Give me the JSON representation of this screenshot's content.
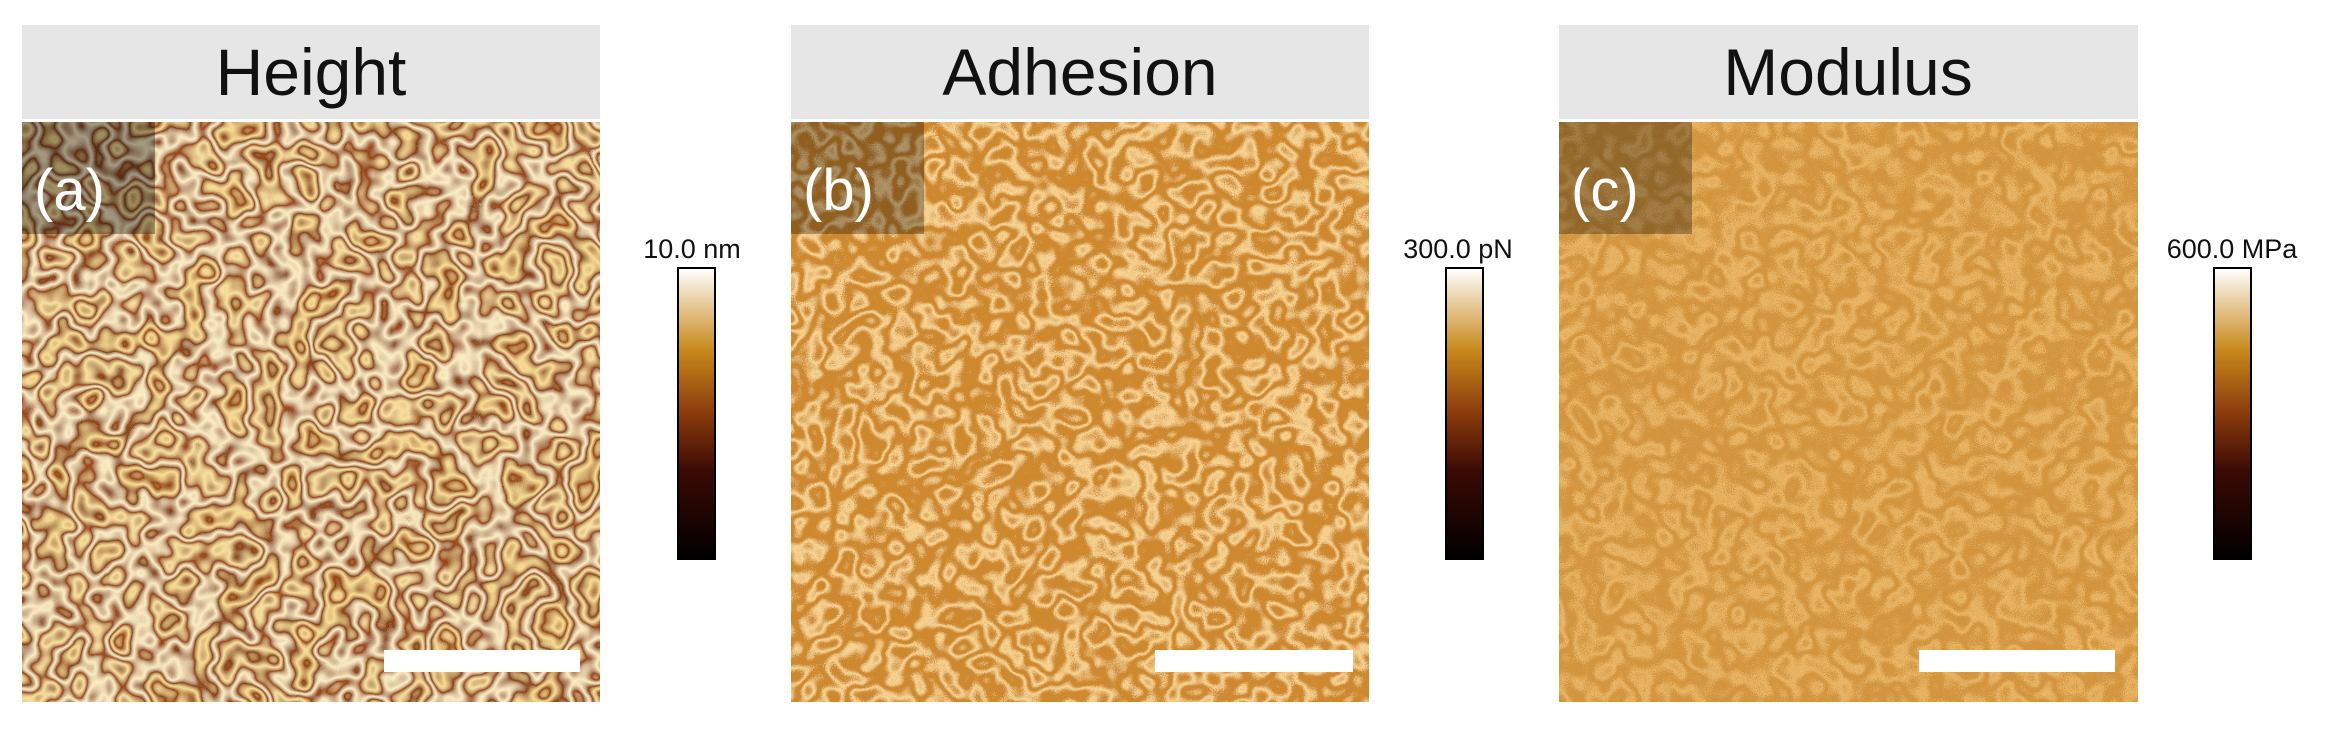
{
  "panels": [
    {
      "title": "Height",
      "label": "(a)",
      "colorbar_label": "10.0 nm"
    },
    {
      "title": "Adhesion",
      "label": "(b)",
      "colorbar_label": "300.0 pN"
    },
    {
      "title": "Modulus",
      "label": "(c)",
      "colorbar_label": "600.0 MPa"
    }
  ]
}
